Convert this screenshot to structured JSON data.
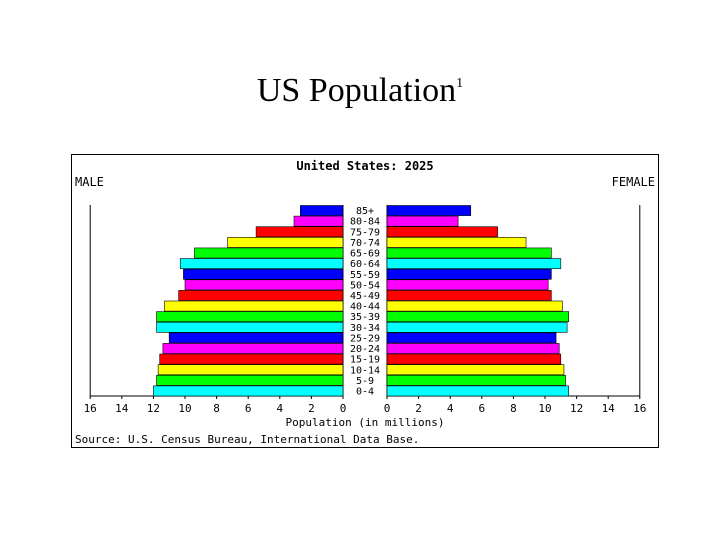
{
  "slide": {
    "title": "US Population",
    "title_superscript": "1"
  },
  "chart_data": {
    "type": "bar",
    "title": "United States: 2025",
    "left_label": "MALE",
    "right_label": "FEMALE",
    "xlabel": "Population (in millions)",
    "source": "Source: U.S. Census Bureau, International Data Base.",
    "xlim": [
      0,
      16
    ],
    "x_ticks": [
      0,
      2,
      4,
      6,
      8,
      10,
      12,
      14,
      16
    ],
    "categories": [
      "0-4",
      "5-9",
      "10-14",
      "15-19",
      "20-24",
      "25-29",
      "30-34",
      "35-39",
      "40-44",
      "45-49",
      "50-54",
      "55-59",
      "60-64",
      "65-69",
      "70-74",
      "75-79",
      "80-84",
      "85+"
    ],
    "series": [
      {
        "name": "MALE",
        "values": [
          12.0,
          11.8,
          11.7,
          11.6,
          11.4,
          11.0,
          11.8,
          11.8,
          11.3,
          10.4,
          10.0,
          10.1,
          10.3,
          9.4,
          7.3,
          5.5,
          3.1,
          2.7
        ]
      },
      {
        "name": "FEMALE",
        "values": [
          11.5,
          11.3,
          11.2,
          11.0,
          10.9,
          10.7,
          11.4,
          11.5,
          11.1,
          10.4,
          10.2,
          10.4,
          11.0,
          10.4,
          8.8,
          7.0,
          4.5,
          5.3
        ]
      }
    ],
    "bar_colors": [
      "#00ffff",
      "#00ff00",
      "#ffff00",
      "#ff0000",
      "#ff00ff",
      "#0000ff",
      "#00ffff",
      "#00ff00",
      "#ffff00",
      "#ff0000",
      "#ff00ff",
      "#0000ff",
      "#00ffff",
      "#00ff00",
      "#ffff00",
      "#ff0000",
      "#ff00ff",
      "#0000ff"
    ]
  }
}
